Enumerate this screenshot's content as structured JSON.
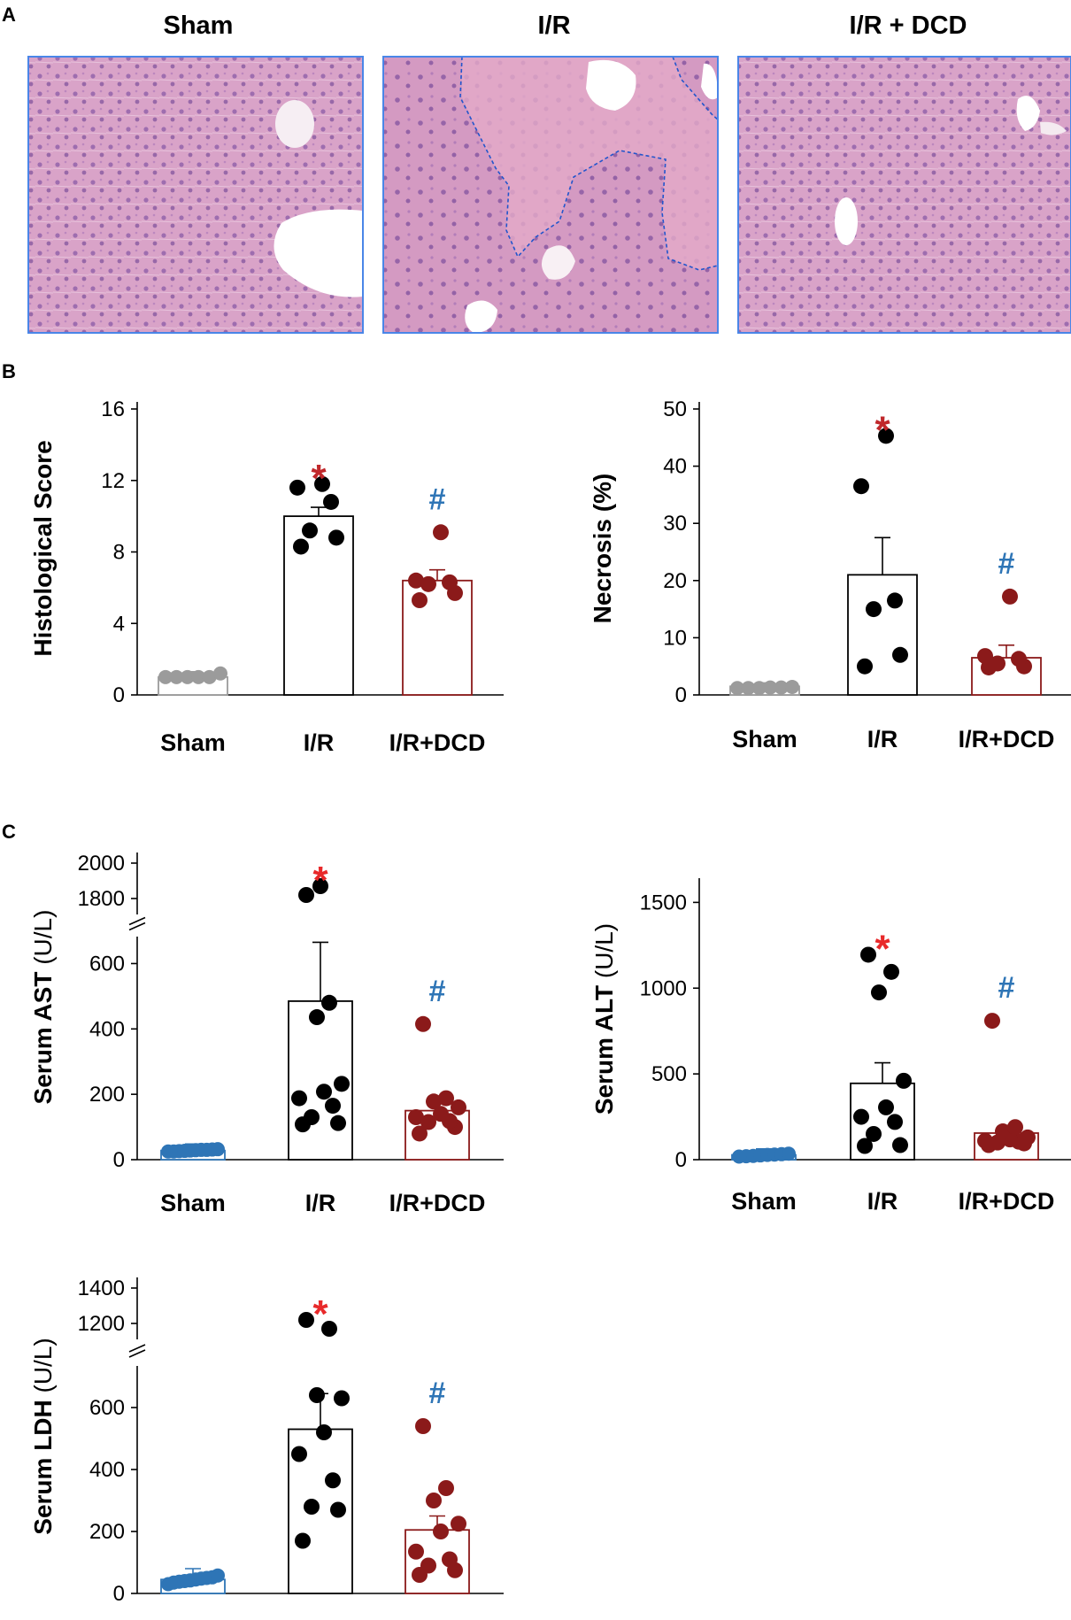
{
  "panel_labels": [
    "A",
    "B",
    "C"
  ],
  "photos": [
    {
      "title": "Sham"
    },
    {
      "title": "I/R"
    },
    {
      "title": "I/R + DCD"
    }
  ],
  "colors": {
    "sham_gray": "#9b9b9b",
    "sham_blue": "#2e75b6",
    "ir": "#000000",
    "dcd": "#8b1a1a",
    "star": "#e8292a",
    "hash": "#2e75b6",
    "photo_border": "#4a86e8",
    "tissue": "#d79cc4",
    "nuclei": "#7a4a9a"
  },
  "chart_data": [
    {
      "id": "histological-score",
      "type": "bar",
      "ylabel": "Histological Score",
      "ylim": [
        0,
        16
      ],
      "yticks": [
        0,
        4,
        8,
        12,
        16
      ],
      "categories": [
        "Sham",
        "I/R",
        "I/R+DCD"
      ],
      "values": [
        1.0,
        10.0,
        6.4
      ],
      "errors": [
        0.3,
        0.5,
        0.6
      ],
      "points": [
        [
          1,
          1,
          1,
          1,
          1,
          1.2
        ],
        [
          8.3,
          8.8,
          9.2,
          10.8,
          11.6,
          11.8
        ],
        [
          5.3,
          5.7,
          6.2,
          6.3,
          6.4,
          9.1
        ]
      ],
      "significance": [
        "",
        "*",
        "#"
      ],
      "sham_color": "sham_gray"
    },
    {
      "id": "necrosis",
      "type": "bar",
      "ylabel": "Necrosis (%)",
      "ylim": [
        0,
        50
      ],
      "yticks": [
        0,
        10,
        20,
        30,
        40,
        50
      ],
      "categories": [
        "Sham",
        "I/R",
        "I/R+DCD"
      ],
      "values": [
        1.5,
        21,
        6.5
      ],
      "errors": [
        0.6,
        6.5,
        2.2
      ],
      "points": [
        [
          1.2,
          1.2,
          1.2,
          1.3,
          1.3,
          1.4
        ],
        [
          5,
          7,
          15,
          16.5,
          36.5,
          45.3
        ],
        [
          4.8,
          5,
          5.5,
          6.3,
          6.8,
          17.2
        ]
      ],
      "significance": [
        "",
        "*",
        "#"
      ],
      "sham_color": "sham_gray"
    },
    {
      "id": "serum-ast",
      "type": "bar",
      "ylabel": "Serum AST (U/L)",
      "ylabel_bold": "Serum AST",
      "ylabel_unit": "(U/L)",
      "ylim": [
        0,
        650
      ],
      "ylim_upper": [
        1700,
        2050
      ],
      "yticks": [
        0,
        200,
        400,
        600
      ],
      "yticks_upper": [
        1800,
        2000
      ],
      "categories": [
        "Sham",
        "I/R",
        "I/R+DCD"
      ],
      "values": [
        28,
        485,
        150
      ],
      "errors": [
        20,
        180,
        30
      ],
      "points": [
        [
          25,
          25,
          26,
          27,
          28,
          29,
          30,
          30,
          31,
          32
        ],
        [
          108,
          112,
          130,
          165,
          188,
          208,
          232,
          436,
          480,
          1820,
          1870
        ],
        [
          80,
          100,
          115,
          118,
          130,
          140,
          160,
          178,
          188,
          415
        ]
      ],
      "significance": [
        "",
        "*",
        "#"
      ],
      "sham_color": "sham_blue"
    },
    {
      "id": "serum-alt",
      "type": "bar",
      "ylabel": "Serum ALT (U/L)",
      "ylabel_bold": "Serum ALT",
      "ylabel_unit": "(U/L)",
      "ylim": [
        0,
        1600
      ],
      "yticks": [
        0,
        500,
        1000,
        1500
      ],
      "categories": [
        "Sham",
        "I/R",
        "I/R+DCD"
      ],
      "values": [
        28,
        445,
        155
      ],
      "errors": [
        35,
        120,
        45
      ],
      "points": [
        [
          18,
          20,
          22,
          25,
          28,
          30,
          32,
          35
        ],
        [
          80,
          85,
          150,
          220,
          250,
          305,
          460,
          975,
          1095,
          1195
        ],
        [
          85,
          95,
          100,
          105,
          110,
          118,
          130,
          165,
          190,
          810
        ]
      ],
      "significance": [
        "",
        "*",
        "#"
      ],
      "sham_color": "sham_blue"
    },
    {
      "id": "serum-ldh",
      "type": "bar",
      "ylabel": "Serum LDH (U/L)",
      "ylabel_bold": "Serum LDH",
      "ylabel_unit": "(U/L)",
      "ylim": [
        0,
        700
      ],
      "ylim_upper": [
        1100,
        1450
      ],
      "yticks": [
        0,
        200,
        400,
        600
      ],
      "yticks_upper": [
        1200,
        1400
      ],
      "categories": [
        "Sham",
        "I/R",
        "I/R+DCD"
      ],
      "values": [
        45,
        530,
        205
      ],
      "errors": [
        35,
        115,
        45
      ],
      "points": [
        [
          30,
          35,
          38,
          40,
          42,
          45,
          48,
          50,
          52,
          58
        ],
        [
          170,
          270,
          280,
          365,
          450,
          520,
          630,
          640,
          1170,
          1220
        ],
        [
          60,
          75,
          90,
          110,
          135,
          200,
          225,
          300,
          340,
          540
        ]
      ],
      "significance": [
        "",
        "*",
        "#"
      ],
      "sham_color": "sham_blue"
    }
  ]
}
